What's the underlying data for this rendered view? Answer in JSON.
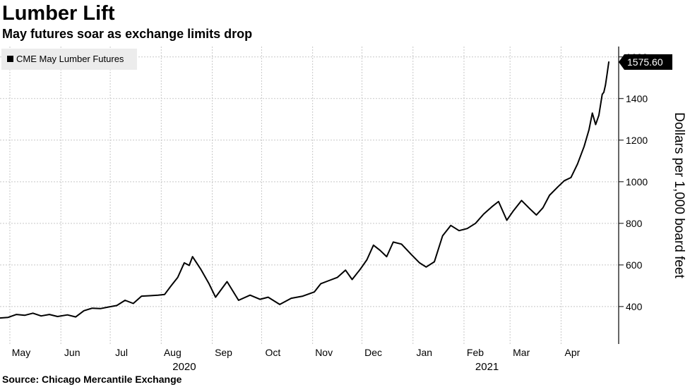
{
  "chart_data": {
    "type": "line",
    "title": "Lumber Lift",
    "subtitle": "May futures soar as exchange limits drop",
    "source": "Source: Chicago Mercantile Exchange",
    "ylabel": "Dollars per 1,000 board feet",
    "ylim": [
      220,
      1650
    ],
    "yticks": [
      400,
      600,
      800,
      1000,
      1200,
      1400,
      1600
    ],
    "xlim": [
      "2020-04-25",
      "2021-04-30"
    ],
    "x_ticks": [
      {
        "date": "2020-05-01",
        "label": "May"
      },
      {
        "date": "2020-06-01",
        "label": "Jun"
      },
      {
        "date": "2020-07-01",
        "label": "Jul"
      },
      {
        "date": "2020-08-01",
        "label": "Aug"
      },
      {
        "date": "2020-09-01",
        "label": "Sep"
      },
      {
        "date": "2020-10-01",
        "label": "Oct"
      },
      {
        "date": "2020-11-01",
        "label": "Nov"
      },
      {
        "date": "2020-12-01",
        "label": "Dec"
      },
      {
        "date": "2021-01-01",
        "label": "Jan"
      },
      {
        "date": "2021-02-01",
        "label": "Feb"
      },
      {
        "date": "2021-03-01",
        "label": "Mar"
      },
      {
        "date": "2021-04-01",
        "label": "Apr"
      }
    ],
    "year_labels": [
      {
        "date": "2020-08-15",
        "label": "2020"
      },
      {
        "date": "2021-02-15",
        "label": "2021"
      }
    ],
    "grid": true,
    "legend_position": "top-left",
    "last_value_label": "1575.60",
    "series": [
      {
        "name": "CME May Lumber Futures",
        "color": "#000000",
        "points": [
          [
            "2020-04-25",
            345
          ],
          [
            "2020-04-30",
            348
          ],
          [
            "2020-05-05",
            362
          ],
          [
            "2020-05-10",
            358
          ],
          [
            "2020-05-15",
            368
          ],
          [
            "2020-05-20",
            355
          ],
          [
            "2020-05-25",
            362
          ],
          [
            "2020-05-30",
            352
          ],
          [
            "2020-06-05",
            360
          ],
          [
            "2020-06-10",
            350
          ],
          [
            "2020-06-15",
            380
          ],
          [
            "2020-06-20",
            392
          ],
          [
            "2020-06-25",
            390
          ],
          [
            "2020-06-30",
            398
          ],
          [
            "2020-07-05",
            405
          ],
          [
            "2020-07-10",
            430
          ],
          [
            "2020-07-15",
            415
          ],
          [
            "2020-07-20",
            450
          ],
          [
            "2020-07-25",
            452
          ],
          [
            "2020-07-30",
            455
          ],
          [
            "2020-08-03",
            458
          ],
          [
            "2020-08-07",
            500
          ],
          [
            "2020-08-11",
            540
          ],
          [
            "2020-08-15",
            610
          ],
          [
            "2020-08-18",
            598
          ],
          [
            "2020-08-20",
            640
          ],
          [
            "2020-08-25",
            580
          ],
          [
            "2020-08-30",
            510
          ],
          [
            "2020-09-03",
            445
          ],
          [
            "2020-09-10",
            520
          ],
          [
            "2020-09-17",
            430
          ],
          [
            "2020-09-24",
            455
          ],
          [
            "2020-09-30",
            435
          ],
          [
            "2020-10-05",
            445
          ],
          [
            "2020-10-12",
            410
          ],
          [
            "2020-10-19",
            440
          ],
          [
            "2020-10-26",
            450
          ],
          [
            "2020-11-02",
            470
          ],
          [
            "2020-11-06",
            510
          ],
          [
            "2020-11-11",
            525
          ],
          [
            "2020-11-16",
            540
          ],
          [
            "2020-11-21",
            575
          ],
          [
            "2020-11-25",
            530
          ],
          [
            "2020-11-30",
            580
          ],
          [
            "2020-12-04",
            625
          ],
          [
            "2020-12-08",
            695
          ],
          [
            "2020-12-12",
            670
          ],
          [
            "2020-12-16",
            640
          ],
          [
            "2020-12-20",
            710
          ],
          [
            "2020-12-25",
            700
          ],
          [
            "2020-12-31",
            650
          ],
          [
            "2021-01-05",
            610
          ],
          [
            "2021-01-09",
            590
          ],
          [
            "2021-01-14",
            615
          ],
          [
            "2021-01-19",
            740
          ],
          [
            "2021-01-24",
            790
          ],
          [
            "2021-01-29",
            765
          ],
          [
            "2021-02-03",
            775
          ],
          [
            "2021-02-08",
            800
          ],
          [
            "2021-02-13",
            845
          ],
          [
            "2021-02-18",
            880
          ],
          [
            "2021-02-22",
            905
          ],
          [
            "2021-02-27",
            815
          ],
          [
            "2021-03-03",
            860
          ],
          [
            "2021-03-08",
            910
          ],
          [
            "2021-03-13",
            870
          ],
          [
            "2021-03-17",
            840
          ],
          [
            "2021-03-21",
            875
          ],
          [
            "2021-03-25",
            935
          ],
          [
            "2021-03-30",
            975
          ],
          [
            "2021-04-03",
            1005
          ],
          [
            "2021-04-07",
            1020
          ],
          [
            "2021-04-11",
            1085
          ],
          [
            "2021-04-15",
            1170
          ],
          [
            "2021-04-18",
            1250
          ],
          [
            "2021-04-20",
            1330
          ],
          [
            "2021-04-22",
            1275
          ],
          [
            "2021-04-24",
            1320
          ],
          [
            "2021-04-26",
            1420
          ],
          [
            "2021-04-27",
            1430
          ],
          [
            "2021-04-28",
            1465
          ],
          [
            "2021-04-29",
            1520
          ],
          [
            "2021-04-30",
            1575.6
          ]
        ]
      }
    ]
  }
}
